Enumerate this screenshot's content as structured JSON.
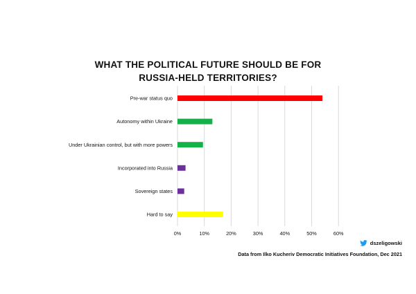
{
  "title_line1": "WHAT THE POLITICAL FUTURE SHOULD BE FOR",
  "title_line2": "RUSSIA-HELD TERRITORIES?",
  "credit": {
    "handle": "dszeligowski",
    "icon": "twitter-icon"
  },
  "source": "Data from Ilko Kucheriv Democratic Initiatives Foundation, Dec 2021",
  "chart_data": {
    "type": "bar",
    "orientation": "horizontal",
    "title": "WHAT THE POLITICAL FUTURE SHOULD BE FOR RUSSIA-HELD TERRITORIES?",
    "categories": [
      "Pre-war status quo",
      "Autonomy within Ukraine",
      "Under Ukrainian control, but with more powers",
      "Incorporated into Russia",
      "Sovereign states",
      "Hard to say"
    ],
    "values": [
      54,
      13,
      9.5,
      3,
      2.5,
      17
    ],
    "colors": [
      "#ff0000",
      "#16b04a",
      "#16b04a",
      "#6b2f9e",
      "#6b2f9e",
      "#ffff00"
    ],
    "x_ticks": [
      "0%",
      "10%",
      "20%",
      "30%",
      "40%",
      "50%",
      "60%"
    ],
    "xlim": [
      0,
      60
    ],
    "xlabel": "",
    "ylabel": "",
    "grid": "vertical",
    "legend": "none"
  }
}
